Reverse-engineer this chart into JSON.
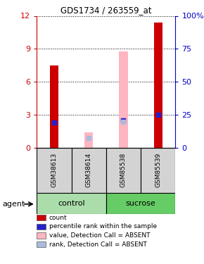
{
  "title": "GDS1734 / 263559_at",
  "samples": [
    "GSM38613",
    "GSM38614",
    "GSM85538",
    "GSM85539"
  ],
  "groups": [
    "control",
    "control",
    "sucrose",
    "sucrose"
  ],
  "ylim_left": [
    0,
    12
  ],
  "ylim_right": [
    0,
    100
  ],
  "yticks_left": [
    0,
    3,
    6,
    9,
    12
  ],
  "yticks_right": [
    0,
    25,
    50,
    75,
    100
  ],
  "ytick_labels_right": [
    "0",
    "25",
    "50",
    "75",
    "100%"
  ],
  "red_bars": [
    7.5,
    0,
    0,
    11.4
  ],
  "blue_markers": [
    2.3,
    0,
    2.5,
    3.0
  ],
  "pink_bars": [
    0,
    1.4,
    8.8,
    0
  ],
  "lavender_markers": [
    0,
    0.9,
    2.4,
    0
  ],
  "bar_width": 0.25,
  "red_color": "#CC0000",
  "blue_color": "#2222CC",
  "pink_color": "#FFB6C1",
  "lavender_color": "#AABBDD",
  "sample_bg": "#D3D3D3",
  "control_color": "#AADDAA",
  "sucrose_color": "#66CC66",
  "legend_items": [
    {
      "color": "#CC0000",
      "label": "count"
    },
    {
      "color": "#2222CC",
      "label": "percentile rank within the sample"
    },
    {
      "color": "#FFB6C1",
      "label": "value, Detection Call = ABSENT"
    },
    {
      "color": "#AABBDD",
      "label": "rank, Detection Call = ABSENT"
    }
  ],
  "agent_label": "agent",
  "left_axis_color": "#CC0000",
  "right_axis_color": "#0000CC",
  "groups_unique": [
    [
      "control",
      0,
      1
    ],
    [
      "sucrose",
      2,
      3
    ]
  ]
}
